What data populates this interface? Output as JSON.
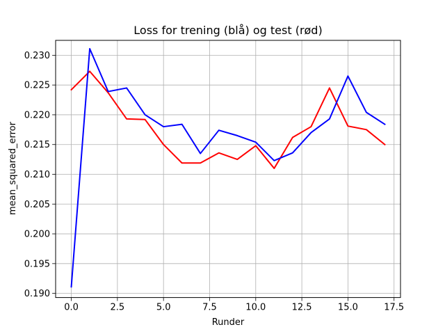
{
  "chart_data": {
    "type": "line",
    "title": "Loss for trening (blå) og test (rød)",
    "xlabel": "Runder",
    "ylabel": "mean_squared_error",
    "xlim": [
      -0.85,
      17.85
    ],
    "ylim": [
      0.1893,
      0.2325
    ],
    "x_ticks": [
      0.0,
      2.5,
      5.0,
      7.5,
      10.0,
      12.5,
      15.0,
      17.5
    ],
    "x_tick_labels": [
      "0.0",
      "2.5",
      "5.0",
      "7.5",
      "10.0",
      "12.5",
      "15.0",
      "17.5"
    ],
    "y_ticks": [
      0.19,
      0.195,
      0.2,
      0.205,
      0.21,
      0.215,
      0.22,
      0.225,
      0.23
    ],
    "y_tick_labels": [
      "0.190",
      "0.195",
      "0.200",
      "0.205",
      "0.210",
      "0.215",
      "0.220",
      "0.225",
      "0.230"
    ],
    "grid": true,
    "x": [
      0,
      1,
      2,
      3,
      4,
      5,
      6,
      7,
      8,
      9,
      10,
      11,
      12,
      13,
      14,
      15,
      16,
      17
    ],
    "series": [
      {
        "color": "#ff0000",
        "values": [
          0.2242,
          0.2273,
          0.2237,
          0.2193,
          0.2192,
          0.215,
          0.2119,
          0.2119,
          0.2136,
          0.2125,
          0.2148,
          0.211,
          0.2162,
          0.218,
          0.2245,
          0.2181,
          0.2175,
          0.215
        ]
      },
      {
        "color": "#0000ff",
        "values": [
          0.1911,
          0.2311,
          0.2239,
          0.2245,
          0.22,
          0.218,
          0.2184,
          0.2135,
          0.2174,
          0.2165,
          0.2154,
          0.2123,
          0.2136,
          0.217,
          0.2193,
          0.2265,
          0.2204,
          0.2184
        ]
      }
    ]
  }
}
